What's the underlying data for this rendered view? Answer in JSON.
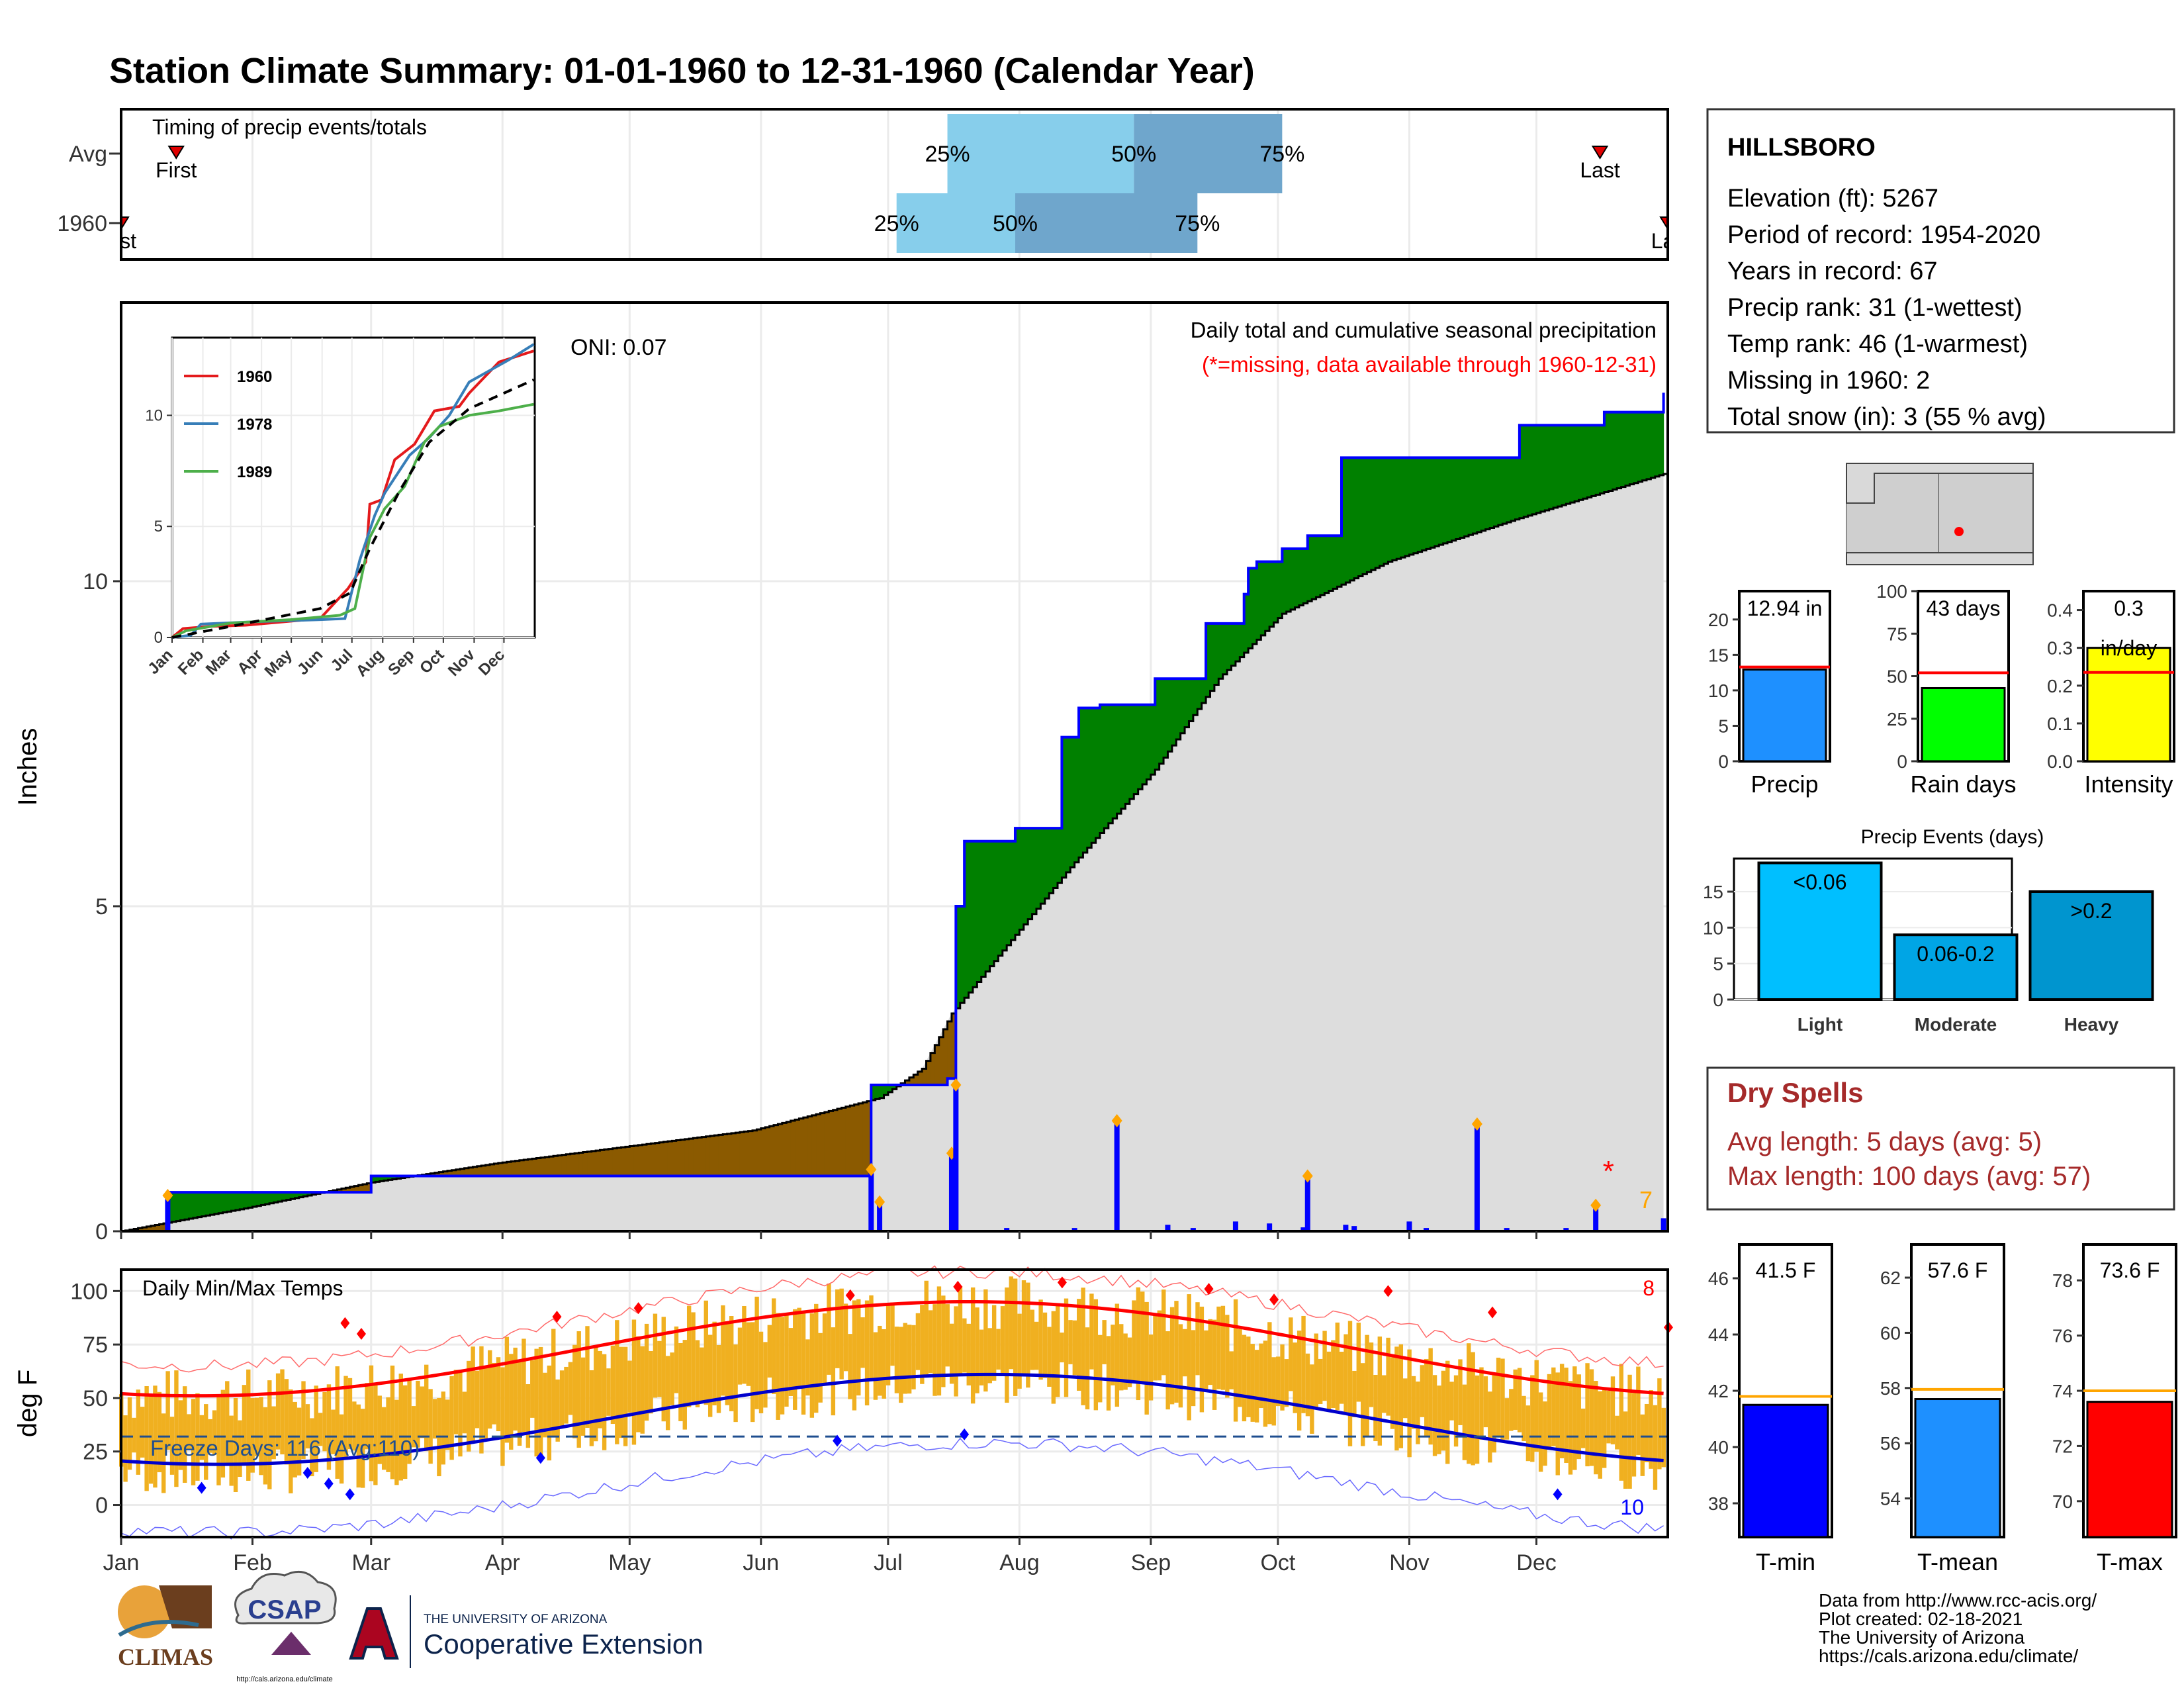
{
  "title": "Station Climate Summary: 01-01-1960 to 12-31-1960 (Calendar Year)",
  "colors": {
    "title": "#000080",
    "brown": "#8B5A00",
    "green": "#008000",
    "blue": "#0000FF",
    "gold": "#F0B020",
    "red": "#FF0000",
    "gray": "#DDDDDD",
    "lightblue": "#87CEEB",
    "steel": "#6FA6CC"
  },
  "months": [
    "Jan",
    "Feb",
    "Mar",
    "Apr",
    "May",
    "Jun",
    "Jul",
    "Aug",
    "Sep",
    "Oct",
    "Nov",
    "Dec"
  ],
  "timing": {
    "label": "Timing of precip events/totals",
    "rows": [
      "Avg",
      "1960"
    ],
    "avg": {
      "first_label": "First",
      "last_label": "Last",
      "first_doy": 14,
      "last_doy": 350,
      "p25_doy": 196,
      "p50_doy": 240,
      "p75_doy": 275,
      "p25": "25%",
      "p50": "50%",
      "p75": "75%"
    },
    "y1960": {
      "first_label": "First",
      "last_label": "Last",
      "first_doy": 1,
      "last_doy": 360,
      "p25_doy": 184,
      "p50_doy": 212,
      "p75_doy": 255,
      "p25": "25%",
      "p50": "50%",
      "p75": "75%"
    }
  },
  "precip_panel": {
    "ylabel": "Inches",
    "yticks": [
      0,
      5,
      10
    ],
    "oni": "ONI: 0.07",
    "caption": "Daily total and cumulative seasonal precipitation",
    "missing_note": "(*=missing, data available through 1960-12-31)",
    "count_label": "7",
    "chart_data": {
      "type": "area",
      "x_unit": "day of year",
      "ylim": [
        0,
        12.7
      ],
      "cumulative_1960": [
        [
          1,
          0
        ],
        [
          12,
          0
        ],
        [
          12,
          0.6
        ],
        [
          60,
          0.6
        ],
        [
          60,
          0.85
        ],
        [
          178,
          0.85
        ],
        [
          178,
          2.25
        ],
        [
          180,
          2.25
        ],
        [
          180,
          2.25
        ],
        [
          196,
          2.25
        ],
        [
          196,
          2.35
        ],
        [
          198,
          2.35
        ],
        [
          198,
          5.0
        ],
        [
          200,
          5.0
        ],
        [
          200,
          6.0
        ],
        [
          212,
          6.0
        ],
        [
          212,
          6.2
        ],
        [
          223,
          6.2
        ],
        [
          223,
          7.6
        ],
        [
          227,
          7.6
        ],
        [
          227,
          8.05
        ],
        [
          232,
          8.05
        ],
        [
          232,
          8.1
        ],
        [
          245,
          8.1
        ],
        [
          245,
          8.5
        ],
        [
          257,
          8.5
        ],
        [
          257,
          9.35
        ],
        [
          266,
          9.35
        ],
        [
          266,
          9.8
        ],
        [
          267,
          9.8
        ],
        [
          267,
          10.2
        ],
        [
          269,
          10.2
        ],
        [
          269,
          10.3
        ],
        [
          275,
          10.3
        ],
        [
          275,
          10.5
        ],
        [
          281,
          10.5
        ],
        [
          281,
          10.7
        ],
        [
          289,
          10.7
        ],
        [
          289,
          11.9
        ],
        [
          331,
          11.9
        ],
        [
          331,
          12.4
        ],
        [
          351,
          12.4
        ],
        [
          351,
          12.6
        ],
        [
          365,
          12.6
        ],
        [
          365,
          12.9
        ]
      ],
      "cumulative_avg": [
        [
          1,
          0
        ],
        [
          30,
          0.35
        ],
        [
          60,
          0.75
        ],
        [
          90,
          1.05
        ],
        [
          120,
          1.3
        ],
        [
          150,
          1.55
        ],
        [
          180,
          2.05
        ],
        [
          190,
          2.5
        ],
        [
          197,
          3.35
        ],
        [
          210,
          4.4
        ],
        [
          225,
          5.6
        ],
        [
          245,
          7.1
        ],
        [
          260,
          8.5
        ],
        [
          275,
          9.5
        ],
        [
          300,
          10.3
        ],
        [
          330,
          10.95
        ],
        [
          365,
          11.65
        ]
      ],
      "daily_events": [
        [
          12,
          0.55
        ],
        [
          178,
          0.95
        ],
        [
          180,
          0.45
        ],
        [
          196,
          0.02
        ],
        [
          197,
          1.2
        ],
        [
          198,
          2.25
        ],
        [
          210,
          0.05
        ],
        [
          226,
          0.05
        ],
        [
          236,
          1.7
        ],
        [
          248,
          0.1
        ],
        [
          254,
          0.05
        ],
        [
          264,
          0.15
        ],
        [
          272,
          0.12
        ],
        [
          280,
          0.06
        ],
        [
          281,
          0.85
        ],
        [
          290,
          0.1
        ],
        [
          292,
          0.08
        ],
        [
          305,
          0.15
        ],
        [
          309,
          0.05
        ],
        [
          321,
          1.65
        ],
        [
          328,
          0.05
        ],
        [
          342,
          0.05
        ],
        [
          349,
          0.4
        ],
        [
          365,
          0.2
        ]
      ],
      "missing_marks": [
        [
          352,
          1.0
        ]
      ]
    },
    "inset": {
      "legend": [
        "1960",
        "1978",
        "1989"
      ],
      "legend_colors": [
        "#E41A1C",
        "#377EB8",
        "#4DAF4A"
      ],
      "yticks": [
        0,
        5,
        10
      ],
      "xlabels": [
        "Jan",
        "Feb",
        "Mar",
        "Apr",
        "May",
        "Jun",
        "Jul",
        "Aug",
        "Sep",
        "Oct",
        "Nov",
        "Dec"
      ]
    }
  },
  "temp_panel": {
    "ylabel": "deg F",
    "label": "Daily Min/Max Temps",
    "freeze": "Freeze Days: 116 (Avg:110)",
    "high_count": "8",
    "low_count": "10",
    "yticks": [
      0,
      25,
      50,
      75,
      100
    ],
    "ylim": [
      -15,
      110
    ]
  },
  "station": {
    "name": "HILLSBORO",
    "lines": [
      "Elevation (ft): 5267",
      "Period of record: 1954-2020",
      "Years in record: 67",
      "Precip rank: 31 (1-wettest)",
      "Temp rank: 46 (1-warmest)",
      "Missing in 1960: 2",
      "Total snow (in): 3 (55 % avg)"
    ]
  },
  "bars_top": [
    {
      "label": "Precip",
      "value_text": "12.94 in",
      "value": 12.94,
      "avg": 13.3,
      "yticks": [
        0,
        5,
        10,
        15,
        20
      ],
      "ymax": 24,
      "color": "#1E90FF"
    },
    {
      "label": "Rain days",
      "value_text": "43 days",
      "value": 43,
      "avg": 52,
      "yticks": [
        0,
        25,
        50,
        75,
        100
      ],
      "ymax": 100,
      "color": "#00FF00"
    },
    {
      "label": "Intensity",
      "value_text": "0.3",
      "unit_text": "in/day",
      "value": 0.3,
      "avg": 0.235,
      "yticks": [
        "0.0",
        "0.1",
        "0.2",
        "0.3",
        "0.4"
      ],
      "ymax": 0.45,
      "color": "#FFFF00"
    }
  ],
  "events": {
    "title": "Precip Events (days)",
    "categories": [
      "Light",
      "Moderate",
      "Heavy"
    ],
    "labels": [
      "<0.06",
      "0.06-0.2",
      ">0.2"
    ],
    "values": [
      19,
      9,
      15
    ],
    "yticks": [
      0,
      5,
      10,
      15
    ],
    "colors": [
      "#00BFFF",
      "#00A5E5",
      "#0095CF"
    ]
  },
  "dry": {
    "title": "Dry Spells",
    "line1": "Avg length: 5 days (avg: 5)",
    "line2": "Max length: 100 days (avg: 57)"
  },
  "temp_bars": [
    {
      "label": "T-min",
      "value_text": "41.5 F",
      "value": 41.5,
      "avg": 41.8,
      "ymin": 36.8,
      "ymax": 47.2,
      "yticks": [
        38,
        40,
        42,
        44,
        46
      ],
      "color": "#0000FF"
    },
    {
      "label": "T-mean",
      "value_text": "57.6 F",
      "value": 57.6,
      "avg": 57.95,
      "ymin": 52.6,
      "ymax": 63.2,
      "yticks": [
        54,
        56,
        58,
        60,
        62
      ],
      "color": "#1E90FF"
    },
    {
      "label": "T-max",
      "value_text": "73.6 F",
      "value": 73.6,
      "avg": 74.0,
      "ymin": 68.7,
      "ymax": 79.3,
      "yticks": [
        70,
        72,
        74,
        76,
        78
      ],
      "color": "#FF0000"
    }
  ],
  "footer": {
    "lines": [
      "Data from http://www.rcc-acis.org/",
      "Plot created: 02-18-2021",
      "The University of Arizona",
      "https://cals.arizona.edu/climate/"
    ],
    "climas": "CLIMAS",
    "csap": "CSAP",
    "csap_url": "http://cals.arizona.edu/climate",
    "ua_small": "THE UNIVERSITY OF ARIZONA",
    "ua_big": "Cooperative Extension"
  }
}
